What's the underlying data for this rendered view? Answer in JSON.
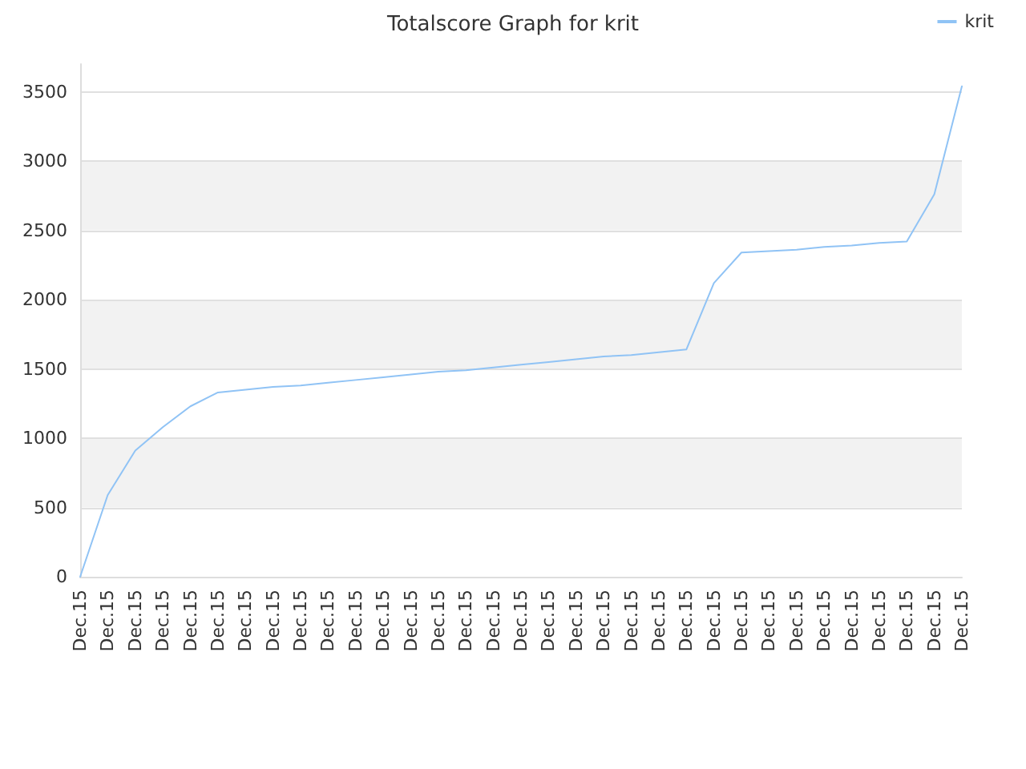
{
  "chart_data": {
    "type": "line",
    "title": "Totalscore Graph for krit",
    "categories": [
      "Dec.15",
      "Dec.15",
      "Dec.15",
      "Dec.15",
      "Dec.15",
      "Dec.15",
      "Dec.15",
      "Dec.15",
      "Dec.15",
      "Dec.15",
      "Dec.15",
      "Dec.15",
      "Dec.15",
      "Dec.15",
      "Dec.15",
      "Dec.15",
      "Dec.15",
      "Dec.15",
      "Dec.15",
      "Dec.15",
      "Dec.15",
      "Dec.15",
      "Dec.15",
      "Dec.15",
      "Dec.15",
      "Dec.15",
      "Dec.15",
      "Dec.15",
      "Dec.15",
      "Dec.15",
      "Dec.15",
      "Dec.15",
      "Dec.15"
    ],
    "series": [
      {
        "name": "krit",
        "color": "#90c3f5",
        "values": [
          0,
          590,
          910,
          1080,
          1230,
          1330,
          1350,
          1370,
          1380,
          1400,
          1420,
          1440,
          1460,
          1480,
          1490,
          1510,
          1530,
          1550,
          1570,
          1590,
          1600,
          1620,
          1640,
          2120,
          2340,
          2350,
          2360,
          2380,
          2390,
          2410,
          2420,
          2760,
          3540
        ]
      }
    ],
    "ylim": [
      0,
      3700
    ],
    "yticks": [
      0,
      500,
      1000,
      1500,
      2000,
      2500,
      3000,
      3500
    ],
    "grid": "y",
    "legend": "top right",
    "marker": "none",
    "line_style": "solid"
  }
}
